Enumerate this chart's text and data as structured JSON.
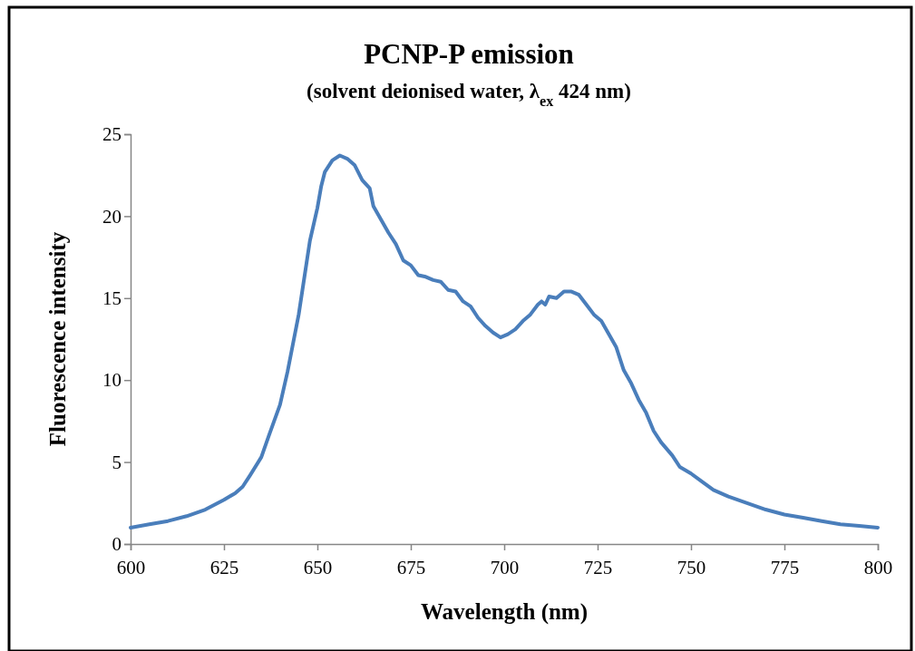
{
  "chart_data": {
    "type": "line",
    "title": "PCNP-P emission",
    "subtitle": "(solvent deionised water, λ$_{ex}$ 424 nm)",
    "xlabel": "Wavelength (nm)",
    "ylabel": "Fluorescence intensity",
    "x": [
      600,
      605,
      610,
      615,
      620,
      625,
      628,
      630,
      632,
      635,
      637,
      640,
      642,
      645,
      647,
      648,
      650,
      651,
      652,
      654,
      656,
      658,
      660,
      662,
      664,
      665,
      667,
      669,
      671,
      673,
      675,
      677,
      679,
      681,
      683,
      685,
      687,
      689,
      691,
      693,
      695,
      697,
      699,
      701,
      703,
      705,
      707,
      709,
      710,
      711,
      712,
      714,
      716,
      718,
      720,
      722,
      724,
      726,
      728,
      730,
      732,
      734,
      736,
      738,
      740,
      742,
      745,
      747,
      750,
      753,
      756,
      760,
      765,
      770,
      775,
      780,
      785,
      790,
      795,
      800
    ],
    "series": [
      {
        "color": "#4a7ebb",
        "values": [
          1.0,
          1.2,
          1.4,
          1.7,
          2.1,
          2.7,
          3.1,
          3.5,
          4.2,
          5.3,
          6.6,
          8.5,
          10.5,
          14,
          17,
          18.5,
          20.5,
          21.8,
          22.7,
          23.4,
          23.7,
          23.5,
          23.1,
          22.2,
          21.7,
          20.6,
          19.8,
          19.0,
          18.3,
          17.3,
          17.0,
          16.4,
          16.3,
          16.1,
          16.0,
          15.5,
          15.4,
          14.8,
          14.5,
          13.8,
          13.3,
          12.9,
          12.6,
          12.8,
          13.1,
          13.6,
          14.0,
          14.6,
          14.8,
          14.6,
          15.1,
          15.0,
          15.4,
          15.4,
          15.2,
          14.6,
          14.0,
          13.6,
          12.8,
          12.0,
          10.6,
          9.8,
          8.8,
          8.0,
          6.9,
          6.2,
          5.4,
          4.7,
          4.3,
          3.8,
          3.3,
          2.9,
          2.5,
          2.1,
          1.8,
          1.6,
          1.4,
          1.2,
          1.1,
          1.0
        ]
      }
    ],
    "xlim": [
      600,
      800
    ],
    "xticks": [
      600,
      625,
      650,
      675,
      700,
      725,
      750,
      775,
      800
    ],
    "ylim": [
      0,
      25
    ],
    "yticks": [
      0,
      5,
      10,
      15,
      20,
      25
    ],
    "grid": false,
    "marker": "none",
    "line_style": "solid"
  }
}
